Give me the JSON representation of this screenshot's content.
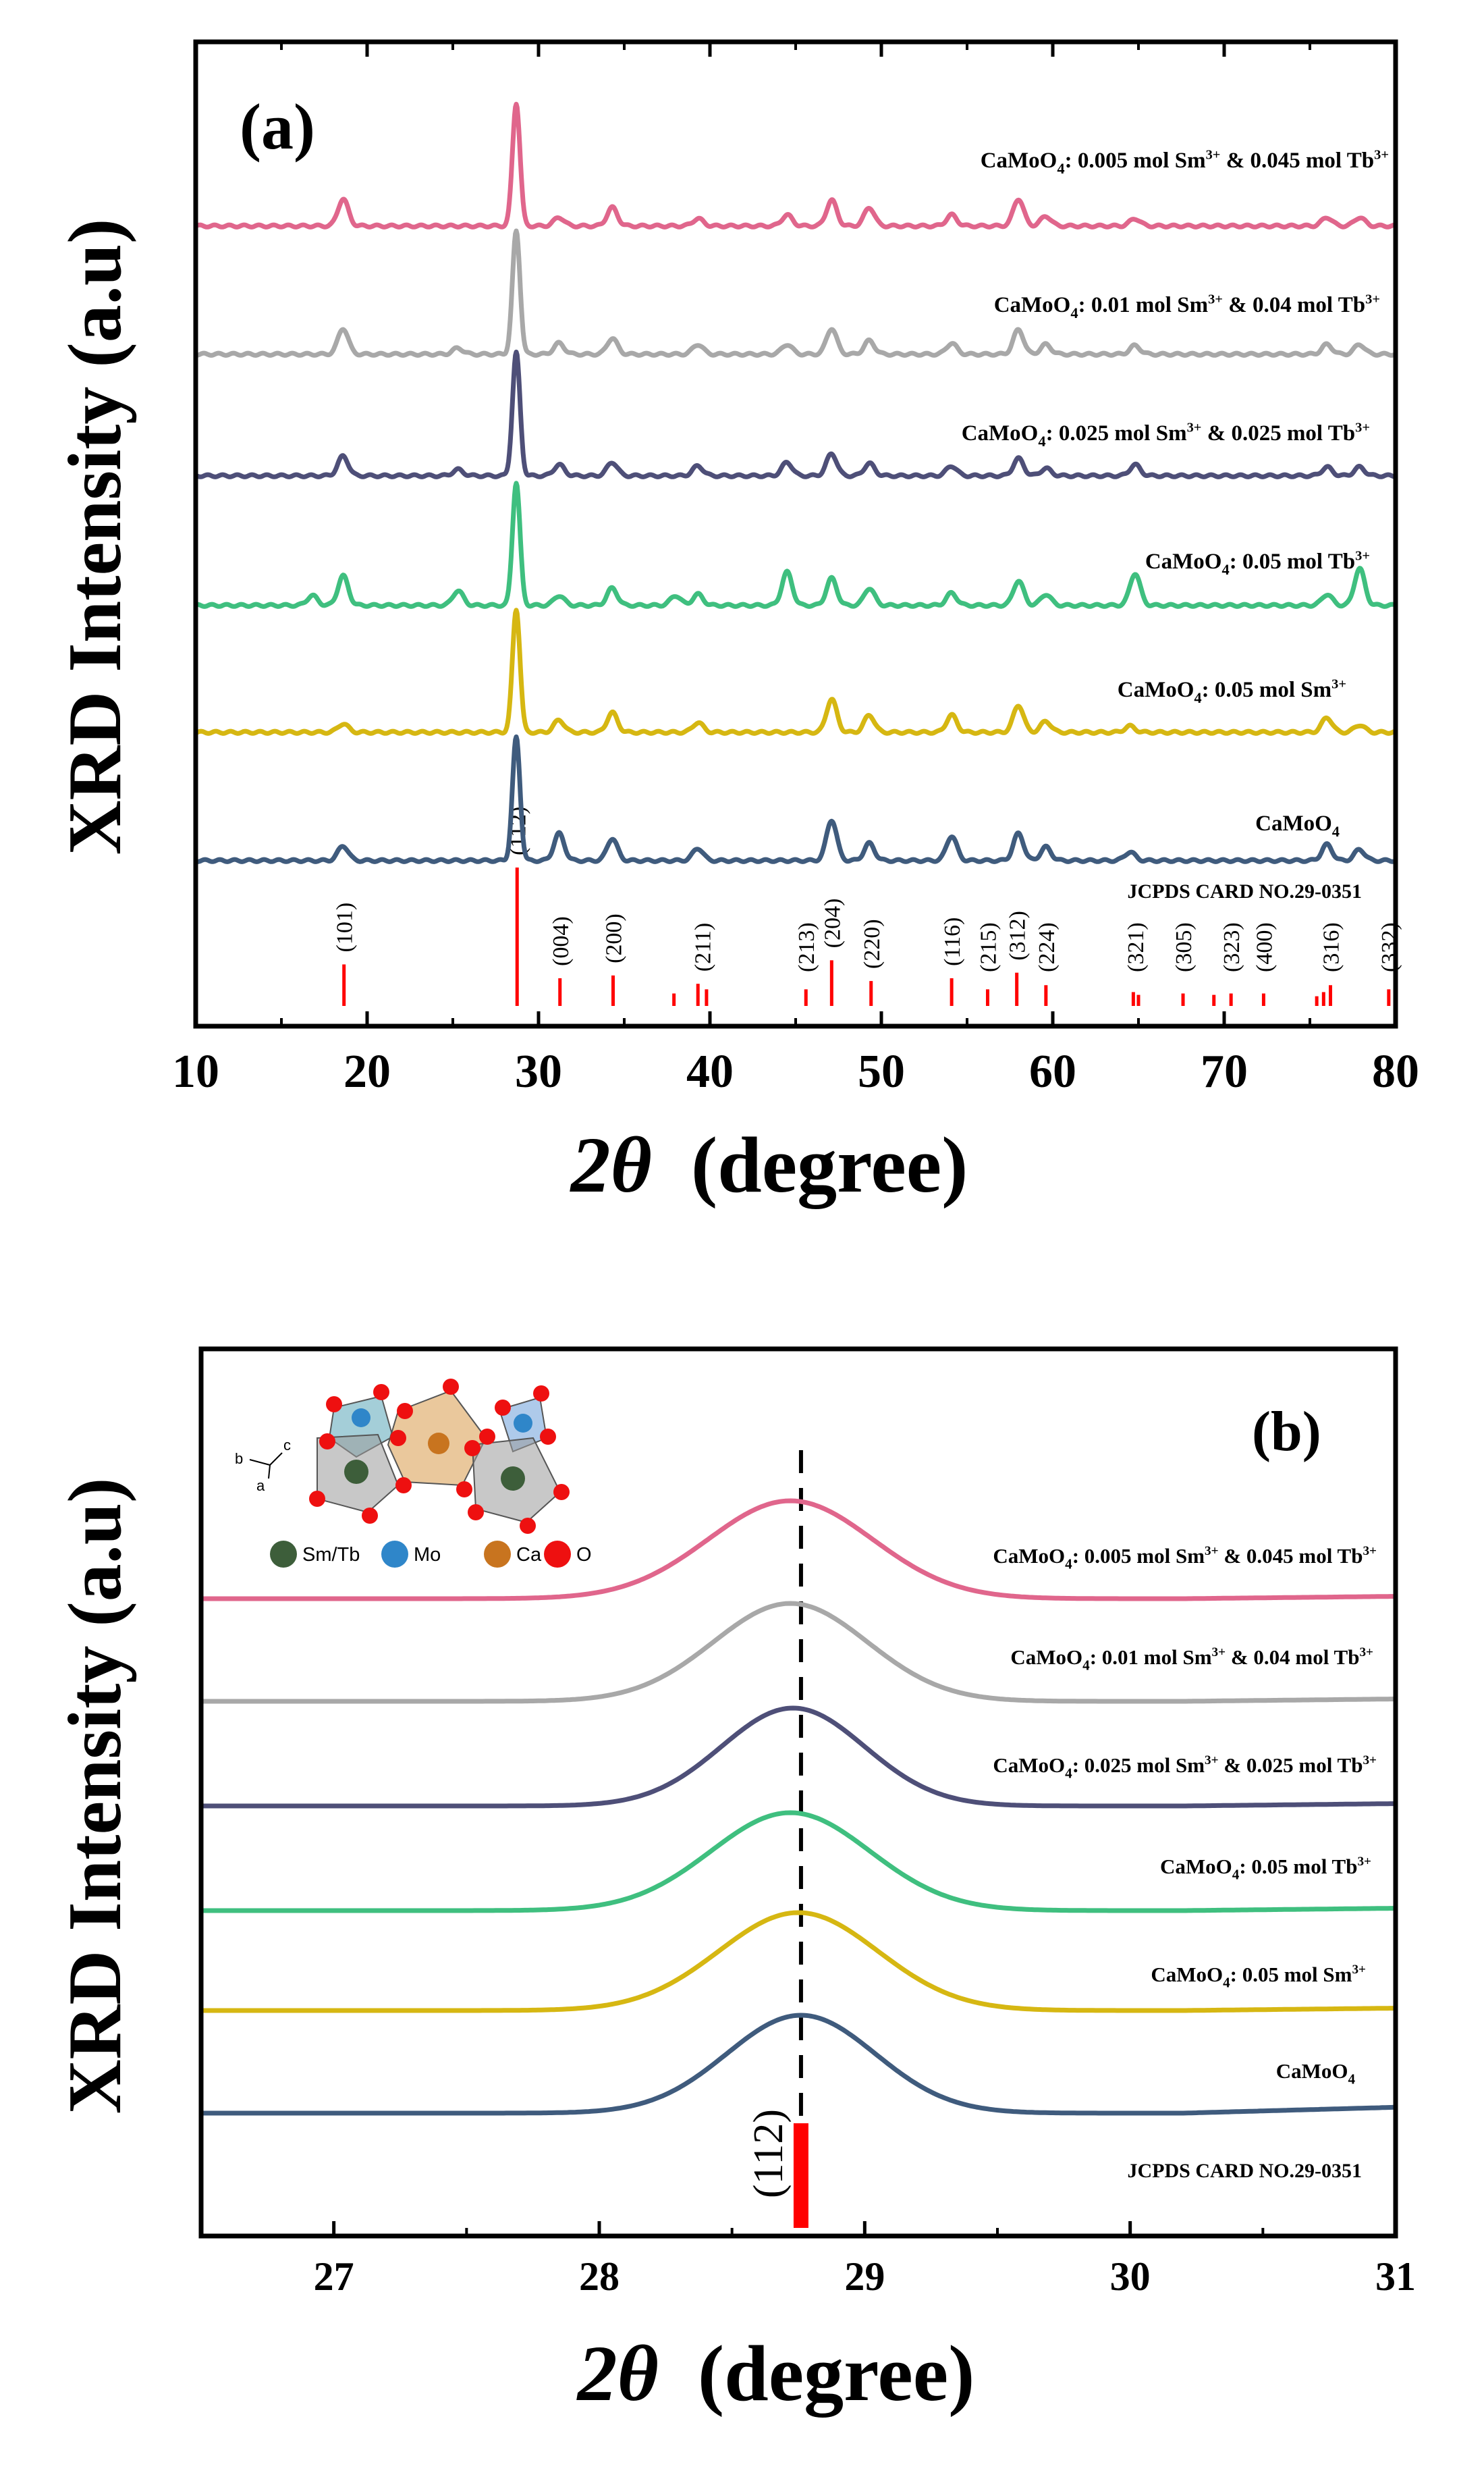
{
  "chart_data": [
    {
      "type": "line",
      "panel_label": "(a)",
      "xlabel_2theta": "2θ",
      "xlabel_unit": "(degree)",
      "ylabel": "XRD Intensity (a.u)",
      "xlim": [
        10,
        80
      ],
      "xticks": [
        10,
        20,
        30,
        40,
        50,
        60,
        70,
        80
      ],
      "series": [
        {
          "name": "CaMoO4",
          "label_main": "CaMoO",
          "label_sub": "4",
          "label_rest": "",
          "label_sup": "",
          "label_tail": "",
          "label_sup2": "",
          "color": "#3f5b7d",
          "peaks": [
            [
              18.6,
              0.12
            ],
            [
              28.7,
              1.0
            ],
            [
              31.2,
              0.22
            ],
            [
              34.3,
              0.18
            ],
            [
              39.3,
              0.1
            ],
            [
              47.1,
              0.33
            ],
            [
              49.3,
              0.14
            ],
            [
              54.1,
              0.2
            ],
            [
              58.0,
              0.22
            ],
            [
              59.6,
              0.11
            ],
            [
              64.5,
              0.07
            ],
            [
              76.0,
              0.13
            ],
            [
              77.9,
              0.09
            ]
          ]
        },
        {
          "name": "CaMoO4: 0.05 mol Sm3+",
          "label_main": "CaMoO",
          "label_sub": "4",
          "label_rest": ": 0.05 mol Sm",
          "label_sup": "3+",
          "label_tail": "",
          "label_sup2": "",
          "color": "#d6b712",
          "peaks": [
            [
              18.6,
              0.07
            ],
            [
              28.7,
              1.0
            ],
            [
              31.2,
              0.1
            ],
            [
              34.3,
              0.16
            ],
            [
              39.3,
              0.08
            ],
            [
              47.1,
              0.27
            ],
            [
              49.3,
              0.14
            ],
            [
              54.1,
              0.14
            ],
            [
              58.0,
              0.22
            ],
            [
              59.6,
              0.09
            ],
            [
              64.5,
              0.05
            ],
            [
              76.0,
              0.12
            ],
            [
              77.9,
              0.06
            ]
          ]
        },
        {
          "name": "CaMoO4: 0.05 mol Tb3+",
          "label_main": "CaMoO",
          "label_sub": "4",
          "label_rest": ": 0.05  mol Tb",
          "label_sup": "3+",
          "label_tail": "",
          "label_sup2": "",
          "color": "#3fbf7f",
          "peaks": [
            [
              16.8,
              0.08
            ],
            [
              18.6,
              0.24
            ],
            [
              25.3,
              0.12
            ],
            [
              28.7,
              1.0
            ],
            [
              31.2,
              0.08
            ],
            [
              34.3,
              0.14
            ],
            [
              38.0,
              0.08
            ],
            [
              39.3,
              0.09
            ],
            [
              44.5,
              0.27
            ],
            [
              47.1,
              0.22
            ],
            [
              49.3,
              0.14
            ],
            [
              54.1,
              0.1
            ],
            [
              58.0,
              0.2
            ],
            [
              59.6,
              0.09
            ],
            [
              64.8,
              0.26
            ],
            [
              76.0,
              0.09
            ],
            [
              77.9,
              0.3
            ]
          ]
        },
        {
          "name": "CaMoO4: 0.025 mol Sm3+ & 0.025 mol Tb3+",
          "label_main": "CaMoO",
          "label_sub": "4",
          "label_rest": ": 0.025 mol Sm",
          "label_sup": "3+",
          "label_tail": " & 0.025 mol Tb",
          "label_sup2": "3+",
          "color": "#4e4f78",
          "peaks": [
            [
              18.6,
              0.16
            ],
            [
              25.3,
              0.05
            ],
            [
              28.7,
              1.0
            ],
            [
              31.2,
              0.09
            ],
            [
              34.3,
              0.11
            ],
            [
              39.3,
              0.08
            ],
            [
              44.5,
              0.11
            ],
            [
              47.1,
              0.18
            ],
            [
              49.3,
              0.1
            ],
            [
              54.1,
              0.08
            ],
            [
              58.0,
              0.14
            ],
            [
              59.6,
              0.06
            ],
            [
              64.8,
              0.09
            ],
            [
              76.0,
              0.07
            ],
            [
              77.9,
              0.07
            ]
          ]
        },
        {
          "name": "CaMoO4: 0.01 mol Sm3+ & 0.04 mol Tb3+",
          "label_main": "CaMoO",
          "label_sub": "4",
          "label_rest": ": 0.01 mol Sm",
          "label_sup": "3+",
          "label_tail": " & 0.04 mol Tb",
          "label_sup2": "3+",
          "color": "#a8a8a8",
          "peaks": [
            [
              18.6,
              0.21
            ],
            [
              25.3,
              0.05
            ],
            [
              28.7,
              1.0
            ],
            [
              31.2,
              0.09
            ],
            [
              34.3,
              0.13
            ],
            [
              39.3,
              0.08
            ],
            [
              44.5,
              0.08
            ],
            [
              47.1,
              0.21
            ],
            [
              49.3,
              0.11
            ],
            [
              54.1,
              0.09
            ],
            [
              58.0,
              0.2
            ],
            [
              59.6,
              0.08
            ],
            [
              64.8,
              0.07
            ],
            [
              76.0,
              0.08
            ],
            [
              77.9,
              0.08
            ]
          ]
        },
        {
          "name": "CaMoO4: 0.005 mol Sm3+ & 0.045 mol Tb3+",
          "label_main": "CaMoO",
          "label_sub": "4",
          "label_rest": ": 0.005 mol Sm",
          "label_sup": "3+",
          "label_tail": " & 0.045 mol Tb",
          "label_sup2": "3+",
          "color": "#e0668c",
          "peaks": [
            [
              18.6,
              0.22
            ],
            [
              28.7,
              1.0
            ],
            [
              31.2,
              0.07
            ],
            [
              34.3,
              0.15
            ],
            [
              39.3,
              0.06
            ],
            [
              44.5,
              0.09
            ],
            [
              47.1,
              0.21
            ],
            [
              49.3,
              0.15
            ],
            [
              54.1,
              0.09
            ],
            [
              58.0,
              0.22
            ],
            [
              59.6,
              0.08
            ],
            [
              64.8,
              0.06
            ],
            [
              76.0,
              0.07
            ],
            [
              77.9,
              0.07
            ]
          ]
        }
      ],
      "reference": {
        "label": "JCPDS CARD NO.29-0351",
        "color": "#ff0000",
        "lines": [
          [
            18.65,
            0.3
          ],
          [
            28.75,
            1.0
          ],
          [
            31.25,
            0.2
          ],
          [
            34.35,
            0.22
          ],
          [
            37.9,
            0.09
          ],
          [
            39.3,
            0.16
          ],
          [
            39.8,
            0.12
          ],
          [
            45.6,
            0.12
          ],
          [
            47.1,
            0.33
          ],
          [
            49.4,
            0.18
          ],
          [
            54.1,
            0.2
          ],
          [
            56.2,
            0.12
          ],
          [
            57.9,
            0.24
          ],
          [
            59.6,
            0.15
          ],
          [
            64.7,
            0.1
          ],
          [
            65.0,
            0.08
          ],
          [
            67.6,
            0.09
          ],
          [
            69.4,
            0.08
          ],
          [
            70.4,
            0.09
          ],
          [
            72.3,
            0.09
          ],
          [
            75.4,
            0.07
          ],
          [
            75.8,
            0.1
          ],
          [
            76.2,
            0.15
          ],
          [
            79.6,
            0.12
          ]
        ],
        "hkl": [
          {
            "x": 18.65,
            "label": "(101)"
          },
          {
            "x": 28.75,
            "label": "(112)"
          },
          {
            "x": 31.25,
            "label": "(004)"
          },
          {
            "x": 34.35,
            "label": "(200)"
          },
          {
            "x": 39.55,
            "label": "(211)"
          },
          {
            "x": 45.6,
            "label": "(213)"
          },
          {
            "x": 47.1,
            "label": "(204)"
          },
          {
            "x": 49.4,
            "label": "(220)"
          },
          {
            "x": 54.1,
            "label": "(116)"
          },
          {
            "x": 56.2,
            "label": "(215)"
          },
          {
            "x": 57.9,
            "label": "(312)"
          },
          {
            "x": 59.6,
            "label": "(224)"
          },
          {
            "x": 64.8,
            "label": "(321)"
          },
          {
            "x": 67.6,
            "label": "(305)"
          },
          {
            "x": 70.4,
            "label": "(323)"
          },
          {
            "x": 72.3,
            "label": "(400)"
          },
          {
            "x": 76.2,
            "label": "(316)"
          },
          {
            "x": 79.6,
            "label": "(332)"
          }
        ]
      }
    },
    {
      "type": "line",
      "panel_label": "(b)",
      "xlabel_2theta": "2θ",
      "xlabel_unit": "(degree)",
      "ylabel": "XRD Intensity (a.u)",
      "xlim": [
        26.5,
        31
      ],
      "xticks": [
        27,
        28,
        29,
        30,
        31
      ],
      "dashed_line_x": 28.76,
      "reference_peak": {
        "x": 28.76,
        "label": "(112)",
        "card": "JCPDS CARD NO.29-0351",
        "color": "#ff0000"
      },
      "series": [
        {
          "name": "CaMoO4",
          "center": 28.76,
          "sigma": 0.28,
          "color": "#3f5b7d"
        },
        {
          "name": "CaMoO4: 0.05 mol Sm3+",
          "center": 28.75,
          "sigma": 0.3,
          "color": "#d6b712"
        },
        {
          "name": "CaMoO4: 0.05 mol Tb3+",
          "center": 28.72,
          "sigma": 0.3,
          "color": "#3fbf7f"
        },
        {
          "name": "CaMoO4: 0.025 mol Sm3+ & 0.025 mol Tb3+",
          "center": 28.73,
          "sigma": 0.27,
          "color": "#4e4f78"
        },
        {
          "name": "CaMoO4: 0.01 mol Sm3+ & 0.04 mol Tb3+",
          "center": 28.72,
          "sigma": 0.29,
          "color": "#a8a8a8"
        },
        {
          "name": "CaMoO4: 0.005 mol Sm3+ & 0.045 mol Tb3+",
          "center": 28.72,
          "sigma": 0.31,
          "color": "#e0668c"
        }
      ],
      "inset": {
        "axes_labels": [
          "b",
          "c",
          "a"
        ],
        "legend": [
          {
            "label": "Sm/Tb",
            "color": "#3d5e3a"
          },
          {
            "label": "Mo",
            "color": "#2f86c9"
          },
          {
            "label": "Ca",
            "color": "#c8741f"
          },
          {
            "label": "O",
            "color": "#ee1010"
          }
        ]
      }
    }
  ]
}
